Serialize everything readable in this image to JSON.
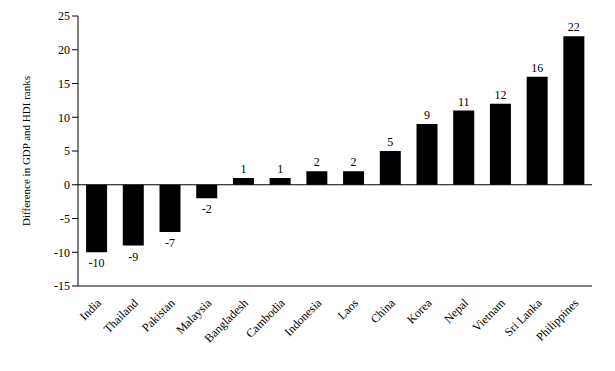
{
  "chart_data": {
    "type": "bar",
    "y_label": "Difference in GDP and HDI ranks",
    "categories": [
      "India",
      "Thailand",
      "Pakistan",
      "Malaysia",
      "Bangladesh",
      "Cambodia",
      "Indonesia",
      "Laos",
      "China",
      "Korea",
      "Nepal",
      "Vietnam",
      "Sri Lanka",
      "Philippines"
    ],
    "values": [
      -10,
      -9,
      -7,
      -2,
      1,
      1,
      2,
      2,
      5,
      9,
      11,
      12,
      16,
      22
    ],
    "color": "#000000",
    "ylim": [
      -15,
      25
    ],
    "yticks": [
      -15,
      -10,
      -5,
      0,
      5,
      10,
      15,
      20,
      25
    ],
    "grid": false,
    "data_labels": true
  }
}
